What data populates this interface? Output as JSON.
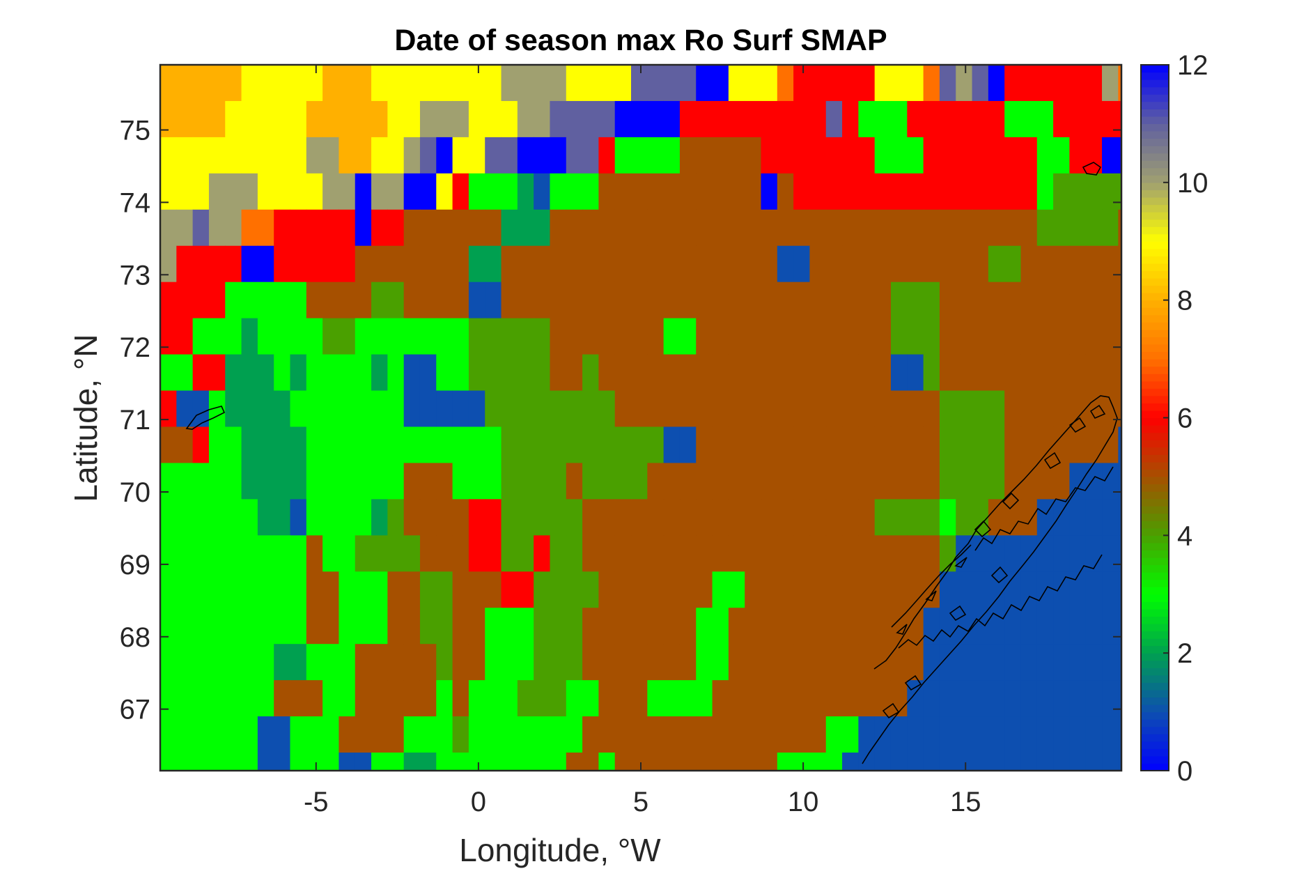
{
  "chart_data": {
    "type": "heatmap",
    "title": "Date of season max Ro Surf SMAP",
    "xlabel": "Longitude, °W",
    "ylabel": "Latitude, °N",
    "xlim": [
      -9.8,
      19.8
    ],
    "ylim": [
      66.15,
      75.9
    ],
    "xticks": [
      -5,
      0,
      5,
      10,
      15
    ],
    "xtick_labels": [
      "-5",
      "0",
      "5",
      "10",
      "15"
    ],
    "yticks": [
      67,
      68,
      69,
      70,
      71,
      72,
      73,
      74,
      75
    ],
    "ytick_labels": [
      "67",
      "68",
      "69",
      "70",
      "71",
      "72",
      "73",
      "74",
      "75"
    ],
    "colorbar": {
      "limits": [
        0,
        12
      ],
      "ticks": [
        0,
        2,
        4,
        6,
        8,
        10,
        12
      ],
      "tick_labels": [
        "0",
        "2",
        "4",
        "6",
        "8",
        "10",
        "12"
      ],
      "colormap": [
        "#0000ff",
        "#0d4fb0",
        "#00a050",
        "#00ff00",
        "#4aa000",
        "#a65000",
        "#ff0000",
        "#ff7000",
        "#ffb000",
        "#ffff00",
        "#a0a070",
        "#6060a0",
        "#0000ff"
      ]
    },
    "grid": {
      "x0": -9.8,
      "y_top": 75.9,
      "dx": 0.5,
      "dy": 0.5,
      "cols": 60,
      "rows": 20,
      "values": [
        [
          8,
          8,
          8,
          8,
          8,
          9,
          9,
          9,
          9,
          9,
          8,
          8,
          8,
          9,
          9,
          9,
          9,
          9,
          9,
          9,
          9,
          10,
          10,
          10,
          10,
          9,
          9,
          9,
          9,
          11,
          11,
          11,
          11,
          12,
          12,
          9,
          9,
          9,
          7,
          6,
          6,
          6,
          6,
          6,
          9,
          9,
          9,
          7,
          11,
          10,
          11,
          12,
          6,
          6,
          6,
          6,
          6,
          6,
          10,
          7
        ],
        [
          8,
          8,
          8,
          8,
          9,
          9,
          9,
          9,
          9,
          8,
          8,
          8,
          8,
          8,
          9,
          9,
          10,
          10,
          10,
          9,
          9,
          9,
          10,
          10,
          11,
          11,
          11,
          11,
          12,
          12,
          12,
          12,
          6,
          6,
          6,
          6,
          6,
          6,
          6,
          6,
          6,
          11,
          6,
          3,
          3,
          3,
          6,
          6,
          6,
          6,
          6,
          6,
          3,
          3,
          3,
          6,
          6,
          6,
          6,
          6
        ],
        [
          9,
          9,
          9,
          9,
          9,
          9,
          9,
          9,
          9,
          10,
          10,
          8,
          8,
          9,
          9,
          10,
          11,
          12,
          9,
          9,
          11,
          11,
          12,
          12,
          12,
          11,
          11,
          6,
          3,
          3,
          3,
          3,
          5,
          5,
          5,
          5,
          5,
          6,
          6,
          6,
          6,
          6,
          6,
          6,
          3,
          3,
          3,
          6,
          6,
          6,
          6,
          6,
          6,
          6,
          3,
          3,
          6,
          6,
          12,
          12
        ],
        [
          9,
          9,
          9,
          10,
          10,
          10,
          9,
          9,
          9,
          9,
          10,
          10,
          12,
          10,
          10,
          12,
          12,
          9,
          6,
          3,
          3,
          3,
          2,
          1,
          3,
          3,
          3,
          5,
          5,
          5,
          5,
          5,
          5,
          5,
          5,
          5,
          5,
          12,
          5,
          6,
          6,
          6,
          6,
          6,
          6,
          6,
          6,
          6,
          6,
          6,
          6,
          6,
          6,
          6,
          3,
          4,
          4,
          4,
          4,
          4
        ],
        [
          10,
          10,
          11,
          10,
          10,
          7,
          7,
          6,
          6,
          6,
          6,
          6,
          12,
          6,
          6,
          5,
          5,
          5,
          5,
          5,
          5,
          2,
          2,
          2,
          5,
          5,
          5,
          5,
          5,
          5,
          5,
          5,
          5,
          5,
          5,
          5,
          5,
          5,
          5,
          5,
          5,
          5,
          5,
          5,
          5,
          5,
          5,
          5,
          5,
          5,
          5,
          5,
          5,
          5,
          4,
          4,
          4,
          4,
          4,
          5
        ],
        [
          10,
          6,
          6,
          6,
          6,
          12,
          12,
          6,
          6,
          6,
          6,
          6,
          5,
          5,
          5,
          5,
          5,
          5,
          5,
          2,
          2,
          5,
          5,
          5,
          5,
          5,
          5,
          5,
          5,
          5,
          5,
          5,
          5,
          5,
          5,
          5,
          5,
          5,
          1,
          1,
          5,
          5,
          5,
          5,
          5,
          5,
          5,
          5,
          5,
          5,
          5,
          4,
          4,
          5,
          5,
          5,
          5,
          5,
          5,
          5
        ],
        [
          6,
          6,
          6,
          6,
          3,
          3,
          3,
          3,
          3,
          5,
          5,
          5,
          5,
          4,
          4,
          5,
          5,
          5,
          5,
          1,
          1,
          5,
          5,
          5,
          5,
          5,
          5,
          5,
          5,
          5,
          5,
          5,
          5,
          5,
          5,
          5,
          5,
          5,
          5,
          5,
          5,
          5,
          5,
          5,
          5,
          4,
          4,
          4,
          5,
          5,
          5,
          5,
          5,
          5,
          5,
          5,
          5,
          5,
          5,
          5
        ],
        [
          6,
          6,
          3,
          3,
          3,
          2,
          3,
          3,
          3,
          3,
          4,
          4,
          3,
          3,
          3,
          3,
          3,
          3,
          3,
          4,
          4,
          4,
          4,
          4,
          5,
          5,
          5,
          5,
          5,
          5,
          5,
          3,
          3,
          5,
          5,
          5,
          5,
          5,
          5,
          5,
          5,
          5,
          5,
          5,
          5,
          4,
          4,
          4,
          5,
          5,
          5,
          5,
          5,
          5,
          5,
          5,
          5,
          5,
          5,
          5
        ],
        [
          3,
          3,
          6,
          6,
          2,
          2,
          2,
          3,
          2,
          3,
          3,
          3,
          3,
          2,
          3,
          1,
          1,
          3,
          3,
          4,
          4,
          4,
          4,
          4,
          5,
          5,
          4,
          5,
          5,
          5,
          5,
          5,
          5,
          5,
          5,
          5,
          5,
          5,
          5,
          5,
          5,
          5,
          5,
          5,
          5,
          1,
          1,
          4,
          5,
          5,
          5,
          5,
          5,
          5,
          5,
          5,
          5,
          5,
          5,
          5
        ],
        [
          6,
          1,
          1,
          3,
          2,
          2,
          2,
          2,
          3,
          3,
          3,
          3,
          3,
          3,
          3,
          1,
          1,
          1,
          1,
          1,
          4,
          4,
          4,
          4,
          4,
          4,
          4,
          4,
          5,
          5,
          5,
          5,
          5,
          5,
          5,
          5,
          5,
          5,
          5,
          5,
          5,
          5,
          5,
          5,
          5,
          5,
          5,
          5,
          4,
          4,
          4,
          4,
          5,
          5,
          5,
          5,
          5,
          5,
          5,
          5
        ],
        [
          5,
          5,
          6,
          3,
          3,
          2,
          2,
          2,
          2,
          3,
          3,
          3,
          3,
          3,
          3,
          3,
          3,
          3,
          3,
          3,
          3,
          4,
          4,
          4,
          4,
          4,
          4,
          4,
          4,
          4,
          4,
          1,
          1,
          5,
          5,
          5,
          5,
          5,
          5,
          5,
          5,
          5,
          5,
          5,
          5,
          5,
          5,
          5,
          4,
          4,
          4,
          4,
          5,
          5,
          5,
          5,
          5,
          5,
          5,
          1
        ],
        [
          3,
          3,
          3,
          3,
          3,
          2,
          2,
          2,
          2,
          3,
          3,
          3,
          3,
          3,
          3,
          5,
          5,
          5,
          3,
          3,
          3,
          4,
          4,
          4,
          4,
          5,
          4,
          4,
          4,
          4,
          5,
          5,
          5,
          5,
          5,
          5,
          5,
          5,
          5,
          5,
          5,
          5,
          5,
          5,
          5,
          5,
          5,
          5,
          4,
          4,
          4,
          4,
          5,
          5,
          5,
          5,
          1,
          1,
          1,
          1
        ],
        [
          3,
          3,
          3,
          3,
          3,
          3,
          2,
          2,
          1,
          3,
          3,
          3,
          3,
          2,
          4,
          5,
          5,
          5,
          5,
          6,
          6,
          4,
          4,
          4,
          4,
          4,
          5,
          5,
          5,
          5,
          5,
          5,
          5,
          5,
          5,
          5,
          5,
          5,
          5,
          5,
          5,
          5,
          5,
          5,
          4,
          4,
          4,
          4,
          3,
          4,
          4,
          5,
          5,
          5,
          1,
          1,
          1,
          1,
          1,
          1
        ],
        [
          3,
          3,
          3,
          3,
          3,
          3,
          3,
          3,
          3,
          5,
          3,
          3,
          4,
          4,
          4,
          4,
          5,
          5,
          5,
          6,
          6,
          4,
          4,
          6,
          4,
          4,
          5,
          5,
          5,
          5,
          5,
          5,
          5,
          5,
          5,
          5,
          5,
          5,
          5,
          5,
          5,
          5,
          5,
          5,
          5,
          5,
          5,
          5,
          4,
          1,
          1,
          1,
          1,
          1,
          1,
          1,
          1,
          1,
          1,
          1
        ],
        [
          3,
          3,
          3,
          3,
          3,
          3,
          3,
          3,
          3,
          5,
          5,
          3,
          3,
          3,
          5,
          5,
          4,
          4,
          5,
          5,
          5,
          6,
          6,
          4,
          4,
          4,
          4,
          5,
          5,
          5,
          5,
          5,
          5,
          5,
          3,
          3,
          5,
          5,
          5,
          5,
          5,
          5,
          5,
          5,
          5,
          5,
          5,
          5,
          1,
          1,
          1,
          1,
          1,
          1,
          1,
          1,
          1,
          1,
          1,
          1
        ],
        [
          3,
          3,
          3,
          3,
          3,
          3,
          3,
          3,
          3,
          5,
          5,
          3,
          3,
          3,
          5,
          5,
          4,
          4,
          5,
          5,
          3,
          3,
          3,
          4,
          4,
          4,
          5,
          5,
          5,
          5,
          5,
          5,
          5,
          3,
          3,
          5,
          5,
          5,
          5,
          5,
          5,
          5,
          5,
          5,
          5,
          5,
          5,
          1,
          1,
          1,
          1,
          1,
          1,
          1,
          1,
          1,
          1,
          1,
          1,
          1
        ],
        [
          3,
          3,
          3,
          3,
          3,
          3,
          3,
          2,
          2,
          3,
          3,
          3,
          5,
          5,
          5,
          5,
          5,
          4,
          5,
          5,
          3,
          3,
          3,
          4,
          4,
          4,
          5,
          5,
          5,
          5,
          5,
          5,
          5,
          3,
          3,
          5,
          5,
          5,
          5,
          5,
          5,
          5,
          5,
          5,
          5,
          5,
          5,
          1,
          1,
          1,
          1,
          1,
          1,
          1,
          1,
          1,
          1,
          1,
          1,
          1
        ],
        [
          3,
          3,
          3,
          3,
          3,
          3,
          3,
          5,
          5,
          5,
          3,
          3,
          5,
          5,
          5,
          5,
          5,
          3,
          5,
          3,
          3,
          3,
          4,
          4,
          4,
          3,
          3,
          5,
          5,
          5,
          3,
          3,
          3,
          3,
          5,
          5,
          5,
          5,
          5,
          5,
          5,
          5,
          5,
          5,
          5,
          5,
          1,
          1,
          1,
          1,
          1,
          1,
          1,
          1,
          1,
          1,
          1,
          1,
          1,
          1
        ],
        [
          3,
          3,
          3,
          3,
          3,
          3,
          1,
          1,
          3,
          3,
          3,
          5,
          5,
          5,
          5,
          3,
          3,
          3,
          4,
          3,
          3,
          3,
          3,
          3,
          3,
          3,
          5,
          5,
          5,
          5,
          5,
          5,
          5,
          5,
          5,
          5,
          5,
          5,
          5,
          5,
          5,
          3,
          3,
          1,
          1,
          1,
          1,
          1,
          1,
          1,
          1,
          1,
          1,
          1,
          1,
          1,
          1,
          1,
          1,
          1
        ],
        [
          3,
          3,
          3,
          3,
          3,
          3,
          1,
          1,
          3,
          3,
          3,
          1,
          1,
          3,
          3,
          2,
          2,
          3,
          3,
          3,
          3,
          3,
          3,
          3,
          3,
          5,
          5,
          3,
          5,
          5,
          5,
          5,
          5,
          5,
          5,
          5,
          5,
          5,
          3,
          3,
          3,
          3,
          1,
          1,
          1,
          1,
          1,
          1,
          1,
          1,
          1,
          1,
          1,
          1,
          1,
          1,
          1,
          1,
          1,
          1
        ]
      ]
    }
  }
}
